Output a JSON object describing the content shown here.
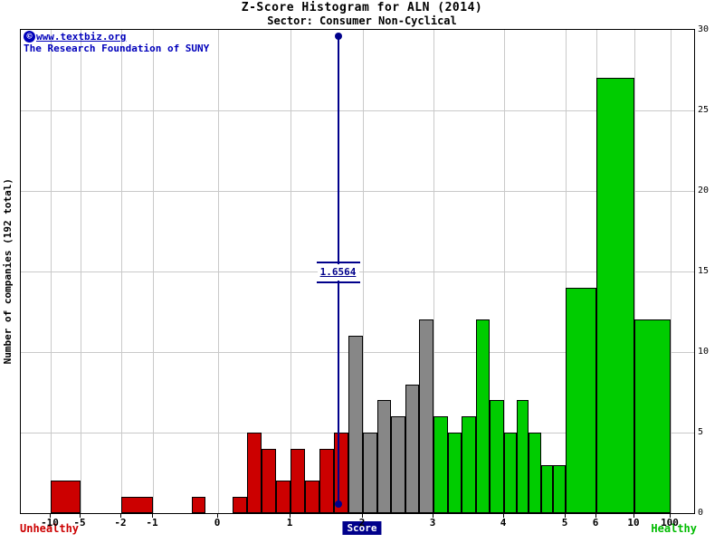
{
  "chart_data": {
    "type": "bar",
    "title": "Z-Score Histogram for ALN (2014)",
    "subtitle": "Sector: Consumer Non-Cyclical",
    "xlabel": "Score",
    "ylabel": "Number of companies (192 total)",
    "total_companies": 192,
    "ylim": [
      0,
      30
    ],
    "x_ticks": [
      -10,
      -5,
      -2,
      -1,
      0,
      1,
      2,
      3,
      4,
      5,
      6,
      10,
      100
    ],
    "y_ticks": [
      0,
      5,
      10,
      15,
      20,
      25,
      30
    ],
    "marker_value": 1.6564,
    "marker_label": "1.6564",
    "legend": {
      "left": "Unhealthy",
      "right": "Healthy"
    },
    "bins": [
      {
        "x0": -10,
        "x1": -5,
        "count": 2,
        "category": "unhealthy"
      },
      {
        "x0": -2,
        "x1": -1,
        "count": 1,
        "category": "unhealthy"
      },
      {
        "x0": -0.4,
        "x1": -0.2,
        "count": 1,
        "category": "unhealthy"
      },
      {
        "x0": 0.2,
        "x1": 0.4,
        "count": 1,
        "category": "unhealthy"
      },
      {
        "x0": 0.4,
        "x1": 0.6,
        "count": 5,
        "category": "unhealthy"
      },
      {
        "x0": 0.6,
        "x1": 0.8,
        "count": 4,
        "category": "unhealthy"
      },
      {
        "x0": 0.8,
        "x1": 1.0,
        "count": 2,
        "category": "unhealthy"
      },
      {
        "x0": 1.0,
        "x1": 1.2,
        "count": 4,
        "category": "unhealthy"
      },
      {
        "x0": 1.2,
        "x1": 1.4,
        "count": 2,
        "category": "unhealthy"
      },
      {
        "x0": 1.4,
        "x1": 1.6,
        "count": 4,
        "category": "unhealthy"
      },
      {
        "x0": 1.6,
        "x1": 1.8,
        "count": 5,
        "category": "unhealthy"
      },
      {
        "x0": 1.8,
        "x1": 2.0,
        "count": 11,
        "category": "neutral"
      },
      {
        "x0": 2.0,
        "x1": 2.2,
        "count": 5,
        "category": "neutral"
      },
      {
        "x0": 2.2,
        "x1": 2.4,
        "count": 7,
        "category": "neutral"
      },
      {
        "x0": 2.4,
        "x1": 2.6,
        "count": 6,
        "category": "neutral"
      },
      {
        "x0": 2.6,
        "x1": 2.8,
        "count": 8,
        "category": "neutral"
      },
      {
        "x0": 2.8,
        "x1": 3.0,
        "count": 12,
        "category": "neutral"
      },
      {
        "x0": 3.0,
        "x1": 3.2,
        "count": 6,
        "category": "healthy"
      },
      {
        "x0": 3.2,
        "x1": 3.4,
        "count": 5,
        "category": "healthy"
      },
      {
        "x0": 3.4,
        "x1": 3.6,
        "count": 6,
        "category": "healthy"
      },
      {
        "x0": 3.6,
        "x1": 3.8,
        "count": 12,
        "category": "healthy"
      },
      {
        "x0": 3.8,
        "x1": 4.0,
        "count": 7,
        "category": "healthy"
      },
      {
        "x0": 4.0,
        "x1": 4.2,
        "count": 5,
        "category": "healthy"
      },
      {
        "x0": 4.2,
        "x1": 4.4,
        "count": 7,
        "category": "healthy"
      },
      {
        "x0": 4.4,
        "x1": 4.6,
        "count": 5,
        "category": "healthy"
      },
      {
        "x0": 4.6,
        "x1": 4.8,
        "count": 3,
        "category": "healthy"
      },
      {
        "x0": 4.8,
        "x1": 5.0,
        "count": 3,
        "category": "healthy"
      },
      {
        "x0": 5,
        "x1": 6,
        "count": 14,
        "category": "healthy"
      },
      {
        "x0": 6,
        "x1": 10,
        "count": 27,
        "category": "healthy"
      },
      {
        "x0": 10,
        "x1": 100,
        "count": 12,
        "category": "healthy"
      }
    ]
  },
  "watermark": {
    "copyright": "©",
    "site": "www.textbiz.org",
    "line2": "The Research Foundation of SUNY"
  },
  "colors": {
    "category": {
      "unhealthy": "#cc0000",
      "neutral": "#878787",
      "healthy": "#00cc00"
    },
    "marker": "#00008b",
    "grid": "#c9c9c9",
    "watermark": "#0000bb",
    "unhealthy_text": "#cc0000",
    "healthy_text": "#00bb00"
  }
}
